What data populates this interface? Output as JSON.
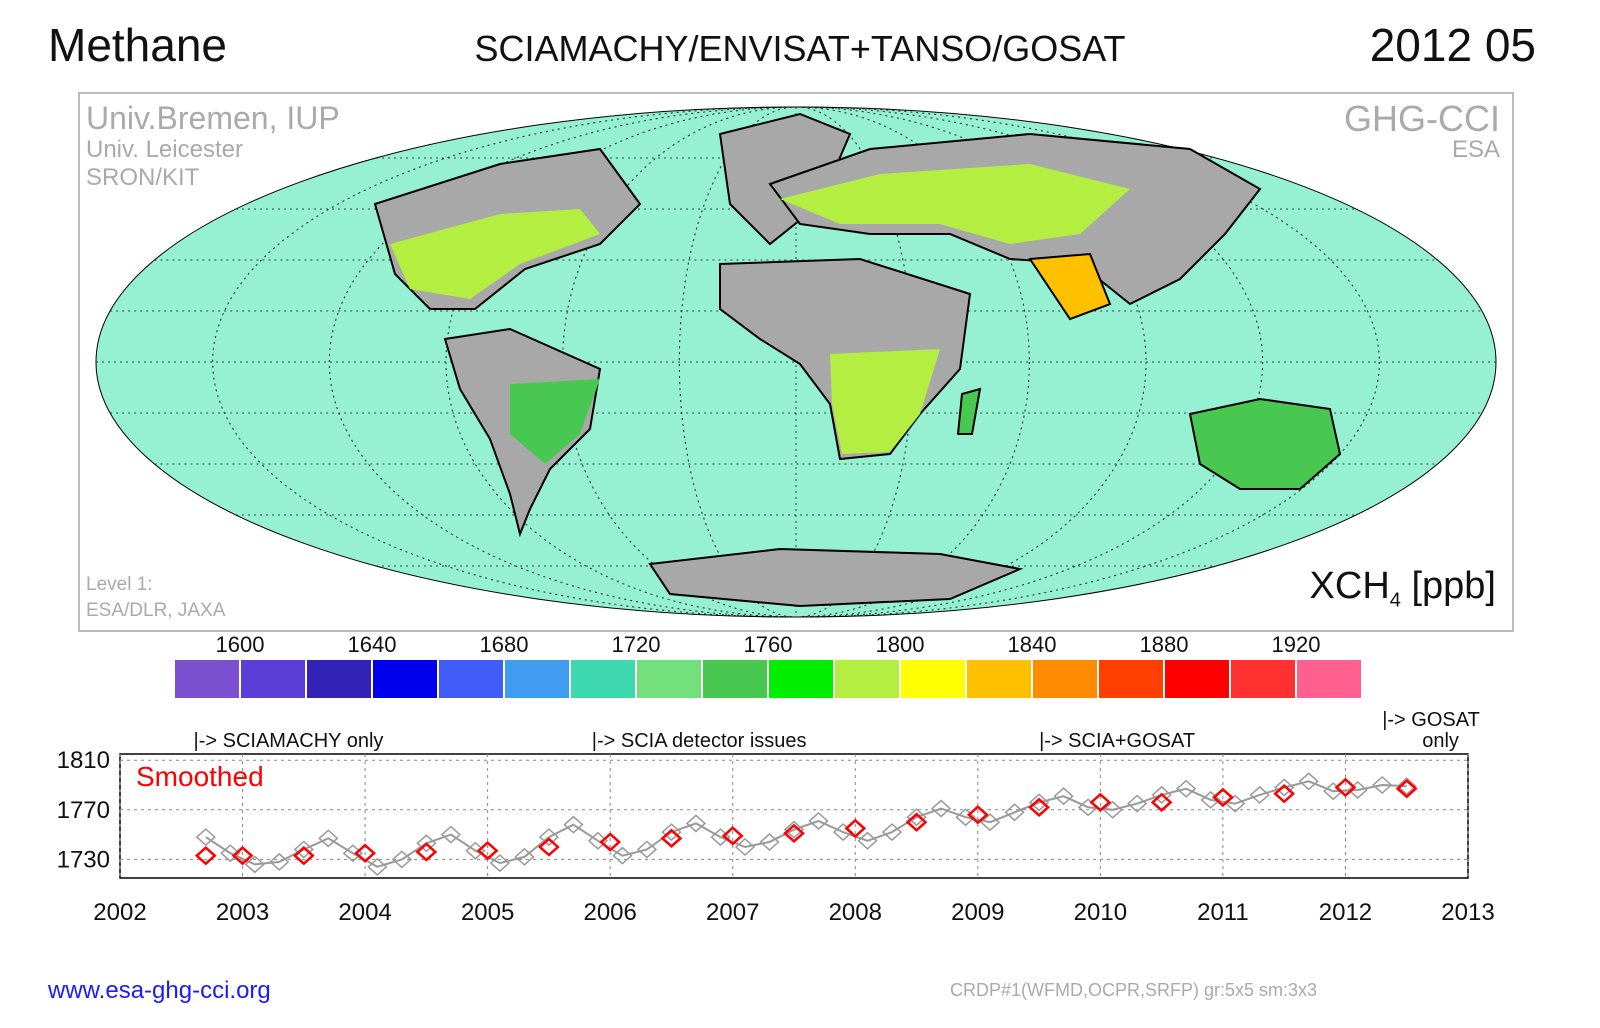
{
  "header": {
    "title": "Methane",
    "instrument": "SCIAMACHY/ENVISAT+TANSO/GOSAT",
    "date": "2012 05"
  },
  "map": {
    "credits_left": [
      "Univ.Bremen, IUP",
      "Univ. Leicester",
      "SRON/KIT"
    ],
    "credits_right": [
      "GHG-CCI",
      "ESA"
    ],
    "level1": [
      "Level 1:",
      "ESA/DLR, JAXA"
    ],
    "quantity": "XCH",
    "quantity_sub": "4",
    "unit": "[ppb]",
    "colors": {
      "ocean": "#96f0d2",
      "no_data_land": "#a8a8a8",
      "outline": "#000000"
    }
  },
  "colorbar": {
    "tick_labels": [
      "1600",
      "1640",
      "1680",
      "1720",
      "1760",
      "1800",
      "1840",
      "1880",
      "1920"
    ],
    "colors": [
      "#7a4fd0",
      "#5a3cd6",
      "#3222b8",
      "#0000ee",
      "#3f5cf6",
      "#3f9cf0",
      "#3ed8b0",
      "#74e07c",
      "#48c850",
      "#00ee00",
      "#b4ee40",
      "#ffff00",
      "#ffc000",
      "#ff8c00",
      "#ff4000",
      "#ff0000",
      "#ff3030",
      "#ff6090"
    ]
  },
  "annotations": [
    {
      "label": "|-> SCIAMACHY only",
      "x": 2002.6
    },
    {
      "label": "|-> SCIA detector issues",
      "x": 2005.85
    },
    {
      "label": "|-> SCIA+GOSAT",
      "x": 2009.5
    },
    {
      "label": "|-> GOSAT only",
      "x": 2012.3
    }
  ],
  "legend": {
    "smoothed": "Smoothed"
  },
  "chart_data": {
    "type": "line",
    "xlim": [
      2002,
      2013
    ],
    "ylim": [
      1715,
      1815
    ],
    "x_ticks": [
      "2002",
      "2003",
      "2004",
      "2005",
      "2006",
      "2007",
      "2008",
      "2009",
      "2010",
      "2011",
      "2012",
      "2013"
    ],
    "y_ticks": [
      "1730",
      "1770",
      "1810"
    ],
    "grid": true,
    "series": [
      {
        "name": "Smoothed",
        "color": "#ff0000",
        "x": [
          2002.7,
          2003.0,
          2003.5,
          2004.0,
          2004.5,
          2005.0,
          2005.5,
          2006.0,
          2006.5,
          2007.0,
          2007.5,
          2008.0,
          2008.5,
          2009.0,
          2009.5,
          2010.0,
          2010.5,
          2011.0,
          2011.5,
          2012.0,
          2012.5
        ],
        "values": [
          1733,
          1733,
          1733,
          1735,
          1736,
          1737,
          1740,
          1744,
          1747,
          1749,
          1751,
          1755,
          1760,
          1766,
          1772,
          1776,
          1776,
          1780,
          1783,
          1788,
          1787
        ]
      },
      {
        "name": "",
        "color": "#999999",
        "x": [
          2002.7,
          2002.9,
          2003.1,
          2003.3,
          2003.5,
          2003.7,
          2003.9,
          2004.1,
          2004.3,
          2004.5,
          2004.7,
          2004.9,
          2005.1,
          2005.3,
          2005.5,
          2005.7,
          2005.9,
          2006.1,
          2006.3,
          2006.5,
          2006.7,
          2006.9,
          2007.1,
          2007.3,
          2007.5,
          2007.7,
          2007.9,
          2008.1,
          2008.3,
          2008.5,
          2008.7,
          2008.9,
          2009.1,
          2009.3,
          2009.5,
          2009.7,
          2009.9,
          2010.1,
          2010.3,
          2010.5,
          2010.7,
          2010.9,
          2011.1,
          2011.3,
          2011.5,
          2011.7,
          2011.9,
          2012.1,
          2012.3,
          2012.5
        ],
        "values": [
          1748,
          1735,
          1726,
          1728,
          1738,
          1747,
          1735,
          1724,
          1730,
          1743,
          1750,
          1737,
          1727,
          1732,
          1748,
          1758,
          1745,
          1733,
          1738,
          1752,
          1759,
          1748,
          1740,
          1744,
          1754,
          1761,
          1752,
          1745,
          1752,
          1764,
          1771,
          1764,
          1760,
          1768,
          1776,
          1781,
          1772,
          1770,
          1775,
          1782,
          1787,
          1778,
          1775,
          1782,
          1788,
          1793,
          1785,
          1786,
          1790,
          1789
        ]
      }
    ]
  },
  "footer": {
    "url": "www.esa-ghg-cci.org",
    "note": "CRDP#1(WFMD,OCPR,SRFP) gr:5x5 sm:3x3"
  }
}
